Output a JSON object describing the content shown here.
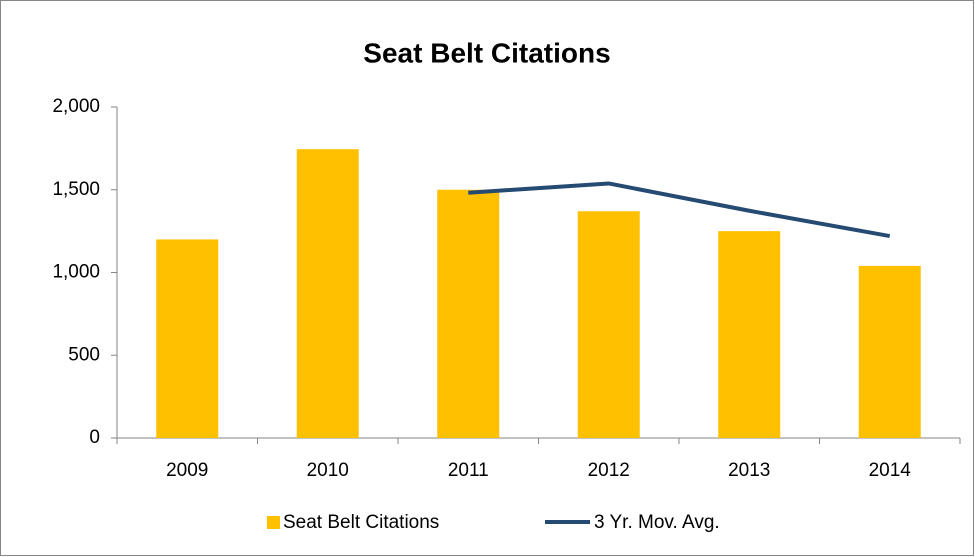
{
  "chart_data": {
    "type": "bar_line",
    "title": "Seat Belt Citations",
    "categories": [
      "2009",
      "2010",
      "2011",
      "2012",
      "2013",
      "2014"
    ],
    "series": [
      {
        "name": "Seat Belt Citations",
        "type": "bar",
        "color": "#ffc000",
        "values": [
          1200,
          1745,
          1500,
          1370,
          1250,
          1040
        ]
      },
      {
        "name": "3 Yr. Mov. Avg.",
        "type": "line",
        "color": "#254b73",
        "values": [
          null,
          null,
          1482,
          1538,
          1373,
          1220
        ]
      }
    ],
    "ylim": [
      0,
      2000
    ],
    "yticks": [
      0,
      {
        "value": 500,
        "label": "500"
      },
      {
        "value": 1000,
        "label": "1,000"
      },
      {
        "value": 1500,
        "label": "1,500"
      },
      {
        "value": 2000,
        "label": "2,000"
      }
    ],
    "grid": false,
    "legend": "bottom"
  }
}
